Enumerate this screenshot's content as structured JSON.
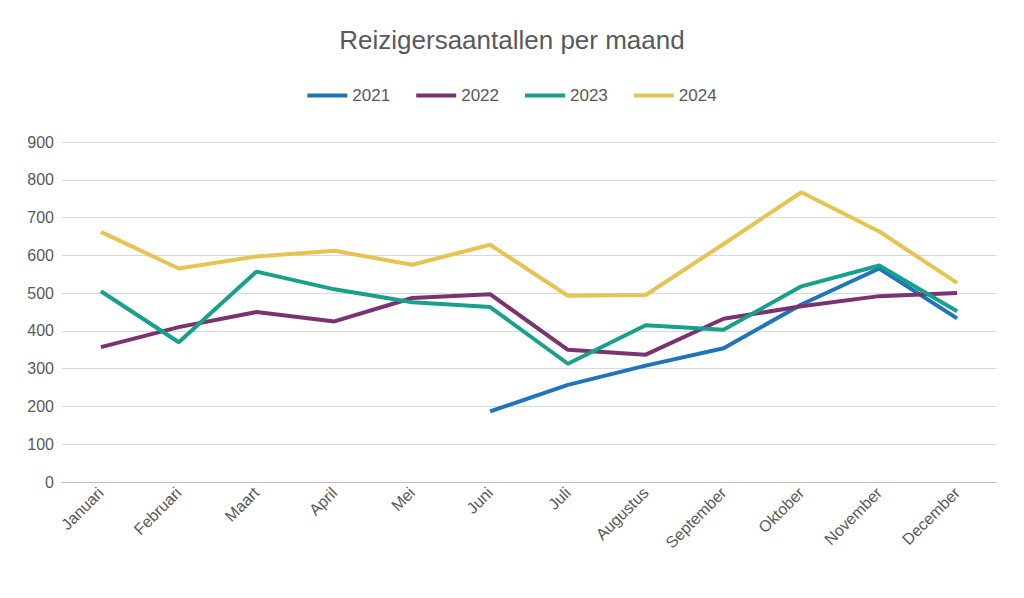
{
  "chart_data": {
    "type": "line",
    "title": "Reizigersaantallen per maand",
    "categories": [
      "Januari",
      "Februari",
      "Maart",
      "April",
      "Mei",
      "Juni",
      "Juli",
      "Augustus",
      "September",
      "Oktober",
      "November",
      "December"
    ],
    "series": [
      {
        "name": "2021",
        "color": "#1F74BA",
        "values": [
          null,
          null,
          null,
          null,
          null,
          187,
          257,
          308,
          354,
          470,
          565,
          433
        ]
      },
      {
        "name": "2022",
        "color": "#7A3270",
        "values": [
          357,
          410,
          450,
          425,
          487,
          497,
          350,
          337,
          432,
          465,
          492,
          500
        ]
      },
      {
        "name": "2023",
        "color": "#17A08A",
        "values": [
          505,
          370,
          557,
          510,
          476,
          463,
          313,
          415,
          403,
          518,
          573,
          452
        ]
      },
      {
        "name": "2024",
        "color": "#E5C453",
        "values": [
          662,
          565,
          597,
          612,
          575,
          628,
          493,
          495,
          630,
          767,
          663,
          527
        ]
      }
    ],
    "ylim": [
      0,
      900
    ],
    "yticks": [
      0,
      100,
      200,
      300,
      400,
      500,
      600,
      700,
      800,
      900
    ],
    "grid": true,
    "legend": "top"
  }
}
